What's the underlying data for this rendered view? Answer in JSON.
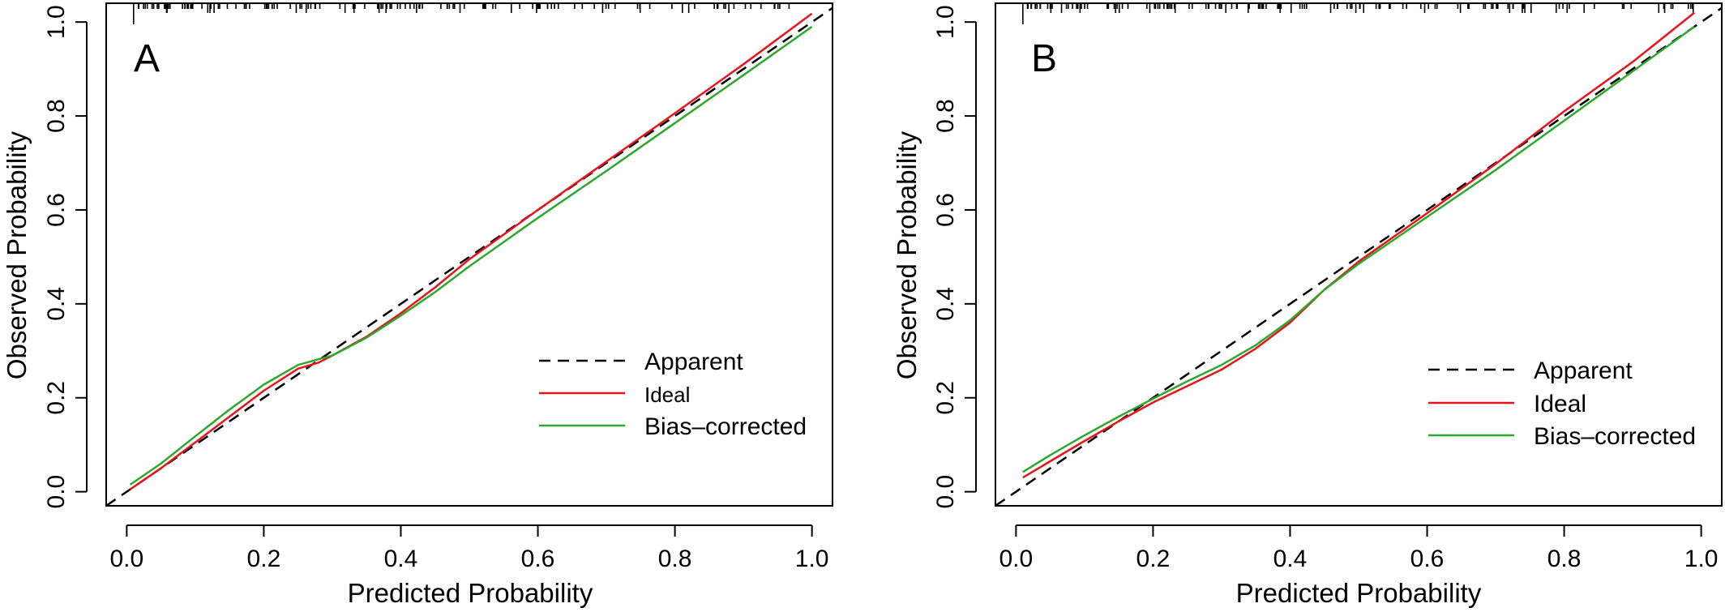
{
  "chart_data": [
    {
      "panel": "A",
      "type": "line",
      "xlabel": "Predicted Probability",
      "ylabel": "Observed Probability",
      "xlim": [
        -0.03,
        1.03
      ],
      "ylim": [
        -0.03,
        1.04
      ],
      "xticks": [
        "0.0",
        "0.2",
        "0.4",
        "0.6",
        "0.8",
        "1.0"
      ],
      "yticks": [
        "0.0",
        "0.2",
        "0.4",
        "0.6",
        "0.8",
        "1.0"
      ],
      "legend_position": "bottom-right",
      "series": [
        {
          "name": "Apparent",
          "color": "#000000",
          "dash": "dashed",
          "x": [
            -0.03,
            1.03
          ],
          "y": [
            -0.03,
            1.03
          ]
        },
        {
          "name": "Ideal",
          "color": "#e8141c",
          "dash": "solid",
          "x": [
            0.005,
            0.05,
            0.1,
            0.15,
            0.2,
            0.25,
            0.28,
            0.3,
            0.35,
            0.4,
            0.45,
            0.5,
            0.6,
            0.7,
            0.8,
            0.9,
            1.0
          ],
          "y": [
            0.005,
            0.05,
            0.105,
            0.16,
            0.215,
            0.262,
            0.275,
            0.29,
            0.33,
            0.38,
            0.435,
            0.495,
            0.6,
            0.703,
            0.806,
            0.91,
            1.018
          ]
        },
        {
          "name": "Bias–corrected",
          "color": "#2ca82c",
          "dash": "solid",
          "x": [
            0.005,
            0.05,
            0.1,
            0.15,
            0.2,
            0.25,
            0.28,
            0.3,
            0.35,
            0.4,
            0.45,
            0.5,
            0.6,
            0.7,
            0.8,
            0.9,
            1.0
          ],
          "y": [
            0.015,
            0.06,
            0.118,
            0.175,
            0.228,
            0.27,
            0.282,
            0.29,
            0.328,
            0.375,
            0.425,
            0.48,
            0.583,
            0.683,
            0.785,
            0.887,
            0.99
          ]
        }
      ]
    },
    {
      "panel": "B",
      "type": "line",
      "xlabel": "Predicted Probability",
      "ylabel": "Observed Probability",
      "xlim": [
        -0.03,
        1.03
      ],
      "ylim": [
        -0.03,
        1.04
      ],
      "xticks": [
        "0.0",
        "0.2",
        "0.4",
        "0.6",
        "0.8",
        "1.0"
      ],
      "yticks": [
        "0.0",
        "0.2",
        "0.4",
        "0.6",
        "0.8",
        "1.0"
      ],
      "legend_position": "bottom-right",
      "series": [
        {
          "name": "Apparent",
          "color": "#000000",
          "dash": "dashed",
          "x": [
            -0.03,
            1.03
          ],
          "y": [
            -0.03,
            1.03
          ]
        },
        {
          "name": "Ideal",
          "color": "#e8141c",
          "dash": "solid",
          "x": [
            0.01,
            0.05,
            0.1,
            0.15,
            0.2,
            0.25,
            0.3,
            0.35,
            0.4,
            0.45,
            0.5,
            0.6,
            0.7,
            0.8,
            0.9,
            0.99
          ],
          "y": [
            0.03,
            0.065,
            0.108,
            0.15,
            0.19,
            0.225,
            0.26,
            0.305,
            0.36,
            0.43,
            0.49,
            0.593,
            0.698,
            0.81,
            0.915,
            1.02
          ]
        },
        {
          "name": "Bias–corrected",
          "color": "#2ca82c",
          "dash": "solid",
          "x": [
            0.01,
            0.05,
            0.1,
            0.15,
            0.2,
            0.25,
            0.3,
            0.35,
            0.4,
            0.45,
            0.5,
            0.6,
            0.7,
            0.8,
            0.9,
            0.99
          ],
          "y": [
            0.042,
            0.078,
            0.12,
            0.16,
            0.198,
            0.235,
            0.27,
            0.312,
            0.365,
            0.43,
            0.485,
            0.585,
            0.685,
            0.79,
            0.895,
            0.99
          ]
        }
      ]
    }
  ],
  "panels": [
    {
      "letter": "A",
      "xlabel": "Predicted Probability",
      "ylabel": "Observed Probability",
      "legend": [
        "Apparent",
        "Ideal",
        "Bias–corrected"
      ]
    },
    {
      "letter": "B",
      "xlabel": "Predicted Probability",
      "ylabel": "Observed Probability",
      "legend": [
        "Apparent",
        "Ideal",
        "Bias–corrected"
      ]
    }
  ]
}
